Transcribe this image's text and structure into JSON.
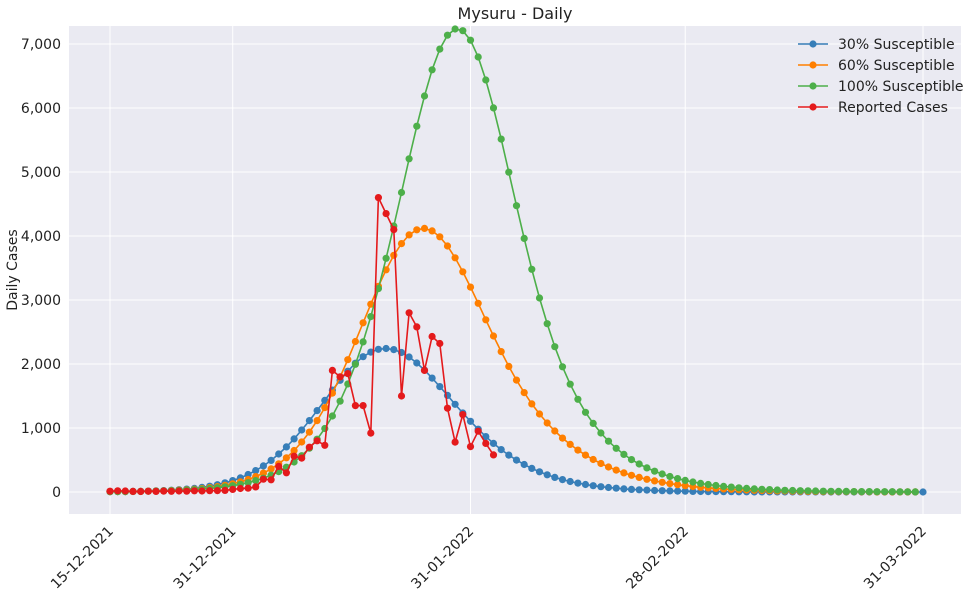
{
  "chart_data": {
    "type": "line",
    "title": "Mysuru - Daily",
    "xlabel": "",
    "ylabel": "Daily Cases",
    "x_start": "15-12-2021",
    "x_end": "31-03-2022",
    "x_ticks": [
      "15-12-2021",
      "31-12-2021",
      "31-01-2022",
      "28-02-2022",
      "31-03-2022"
    ],
    "y_ticks": [
      "0",
      "1,000",
      "2,000",
      "3,000",
      "4,000",
      "5,000",
      "6,000",
      "7,000"
    ],
    "ylim": [
      -350,
      7300
    ],
    "grid": true,
    "legend_position": "top-right",
    "series": [
      {
        "name": "30% Susceptible",
        "color": "#377eb8",
        "values": [
          5,
          6,
          7,
          9,
          11,
          14,
          18,
          22,
          28,
          36,
          45,
          57,
          72,
          91,
          114,
          143,
          178,
          221,
          273,
          335,
          408,
          494,
          593,
          705,
          830,
          968,
          1116,
          1272,
          1432,
          1592,
          1746,
          1888,
          2013,
          2114,
          2186,
          2229,
          2242,
          2225,
          2180,
          2109,
          2016,
          1905,
          1780,
          1647,
          1509,
          1371,
          1235,
          1105,
          981,
          866,
          760,
          663,
          576,
          498,
          429,
          368,
          315,
          268,
          228,
          193,
          164,
          139,
          117,
          99,
          83,
          70,
          59,
          49,
          41,
          35,
          29,
          24,
          20,
          17,
          14,
          12,
          10,
          8,
          7,
          6,
          5,
          4,
          3,
          3,
          2,
          2,
          2,
          1,
          1,
          1,
          1,
          1,
          1,
          0,
          0,
          0,
          0,
          0,
          0,
          0,
          0,
          0,
          0,
          0,
          0,
          0,
          0
        ]
      },
      {
        "name": "60% Susceptible",
        "color": "#ff7f00",
        "values": [
          5,
          6,
          7,
          8,
          10,
          12,
          15,
          19,
          23,
          29,
          36,
          44,
          55,
          68,
          84,
          104,
          128,
          158,
          195,
          240,
          295,
          361,
          440,
          535,
          648,
          781,
          936,
          1115,
          1318,
          1546,
          1797,
          2067,
          2351,
          2643,
          2934,
          3214,
          3472,
          3698,
          3882,
          4017,
          4097,
          4118,
          4080,
          3987,
          3844,
          3659,
          3441,
          3201,
          2948,
          2691,
          2437,
          2193,
          1962,
          1748,
          1553,
          1377,
          1219,
          1078,
          953,
          842,
          743,
          655,
          577,
          508,
          446,
          391,
          342,
          299,
          261,
          228,
          199,
          173,
          151,
          131,
          114,
          99,
          86,
          74,
          64,
          56,
          48,
          42,
          36,
          31,
          27,
          23,
          20,
          17,
          15,
          13,
          11,
          9,
          8,
          7,
          6,
          5,
          4,
          4,
          3,
          3,
          2,
          2,
          2,
          1,
          1,
          1
        ]
      },
      {
        "name": "100% Susceptible",
        "color": "#4daf4a",
        "values": [
          5,
          6,
          7,
          8,
          10,
          12,
          14,
          17,
          21,
          25,
          31,
          37,
          45,
          55,
          67,
          81,
          99,
          120,
          146,
          178,
          216,
          263,
          319,
          387,
          469,
          567,
          685,
          825,
          992,
          1188,
          1419,
          1687,
          1995,
          2346,
          2741,
          3178,
          3652,
          4157,
          4680,
          5206,
          5716,
          6188,
          6597,
          6920,
          7137,
          7235,
          7208,
          7059,
          6797,
          6437,
          6002,
          5514,
          4997,
          4474,
          3963,
          3479,
          3032,
          2629,
          2271,
          1957,
          1684,
          1449,
          1246,
          1072,
          922,
          794,
          683,
          588,
          507,
          437,
          377,
          325,
          281,
          242,
          209,
          181,
          156,
          135,
          117,
          101,
          87,
          76,
          65,
          57,
          49,
          42,
          37,
          32,
          27,
          24,
          20,
          18,
          15,
          13,
          11,
          10,
          9,
          7,
          6,
          6,
          5,
          4,
          4,
          3,
          3,
          2
        ]
      },
      {
        "name": "Reported Cases",
        "color": "#e41a1c",
        "values": [
          12,
          18,
          15,
          10,
          8,
          12,
          9,
          14,
          11,
          16,
          13,
          18,
          15,
          20,
          22,
          25,
          40,
          55,
          60,
          80,
          200,
          190,
          400,
          300,
          560,
          530,
          700,
          800,
          730,
          1900,
          1800,
          1850,
          1350,
          1350,
          920,
          4600,
          4350,
          4100,
          1500,
          2800,
          2580,
          1900,
          2430,
          2320,
          1310,
          780,
          1210,
          710,
          950,
          760,
          580
        ]
      }
    ]
  }
}
